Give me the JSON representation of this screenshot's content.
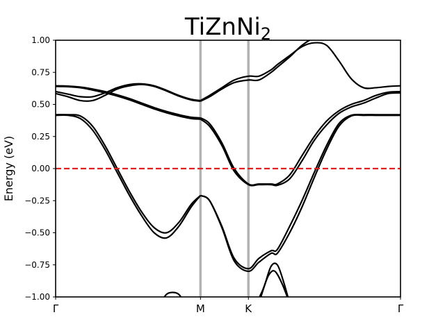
{
  "chart_data": {
    "type": "line",
    "title": "TiZnNi",
    "title_subscript": "2",
    "ylabel": "Energy (eV)",
    "xlabel": "",
    "ylim": [
      -1.0,
      1.0
    ],
    "xlim": [
      0,
      2.8
    ],
    "yticks": [
      -1.0,
      -0.75,
      -0.5,
      -0.25,
      0.0,
      0.25,
      0.5,
      0.75,
      1.0
    ],
    "ytick_labels": [
      "−1.00",
      "−0.75",
      "−0.50",
      "−0.25",
      "0.00",
      "0.25",
      "0.50",
      "0.75",
      "1.00"
    ],
    "kpoints": [
      {
        "label": "Γ",
        "x": 0.0
      },
      {
        "label": "M",
        "x": 1.176
      },
      {
        "label": "K",
        "x": 1.565
      },
      {
        "label": "Γ",
        "x": 2.8
      }
    ],
    "kpoint_line_color": "#b3b3b3",
    "fermi_level": {
      "y": 0.0,
      "color": "#e02020",
      "style": "dashed"
    },
    "band_color": "#000000",
    "grid": false,
    "series": [
      {
        "x": [
          0,
          0.1,
          0.2,
          0.3,
          0.4,
          0.5,
          0.6,
          0.7,
          0.8,
          0.9,
          1.0,
          1.1,
          1.176
        ],
        "values": [
          0.645,
          0.643,
          0.635,
          0.62,
          0.6,
          0.575,
          0.545,
          0.51,
          0.475,
          0.445,
          0.42,
          0.4,
          0.395
        ]
      },
      {
        "x": [
          0,
          0.1,
          0.2,
          0.3,
          0.4,
          0.5,
          0.6,
          0.7,
          0.8,
          0.9,
          1.0,
          1.1,
          1.176
        ],
        "values": [
          0.64,
          0.638,
          0.63,
          0.612,
          0.59,
          0.565,
          0.535,
          0.5,
          0.465,
          0.435,
          0.41,
          0.39,
          0.385
        ]
      },
      {
        "x": [
          0,
          0.1,
          0.2,
          0.3,
          0.4,
          0.5,
          0.6,
          0.7,
          0.8,
          0.9,
          1.0,
          1.1,
          1.176
        ],
        "values": [
          0.6,
          0.58,
          0.56,
          0.56,
          0.59,
          0.63,
          0.655,
          0.66,
          0.645,
          0.61,
          0.57,
          0.54,
          0.53
        ]
      },
      {
        "x": [
          0,
          0.1,
          0.2,
          0.3,
          0.4,
          0.5,
          0.6,
          0.7,
          0.8,
          0.9,
          1.0,
          1.1,
          1.176
        ],
        "values": [
          0.585,
          0.56,
          0.53,
          0.53,
          0.57,
          0.62,
          0.645,
          0.655,
          0.64,
          0.605,
          0.565,
          0.535,
          0.525
        ]
      },
      {
        "x": [
          0,
          0.1,
          0.2,
          0.3,
          0.4,
          0.5,
          0.6,
          0.7,
          0.8,
          0.9,
          1.0,
          1.1,
          1.176
        ],
        "values": [
          0.42,
          0.42,
          0.41,
          0.33,
          0.18,
          0.0,
          -0.18,
          -0.34,
          -0.46,
          -0.5,
          -0.42,
          -0.28,
          -0.21
        ]
      },
      {
        "x": [
          0,
          0.1,
          0.2,
          0.3,
          0.4,
          0.5,
          0.6,
          0.7,
          0.8,
          0.9,
          1.0,
          1.1,
          1.176
        ],
        "values": [
          0.415,
          0.415,
          0.39,
          0.3,
          0.15,
          -0.03,
          -0.21,
          -0.37,
          -0.5,
          -0.54,
          -0.45,
          -0.3,
          -0.21
        ]
      },
      {
        "x": [
          1.176,
          1.25,
          1.35,
          1.45,
          1.565,
          1.65,
          1.75,
          1.8,
          1.9,
          2.0,
          2.1,
          2.2,
          2.3,
          2.4,
          2.5,
          2.6,
          2.7,
          2.8
        ],
        "values": [
          0.53,
          0.57,
          0.63,
          0.69,
          0.72,
          0.72,
          0.77,
          0.81,
          0.88,
          0.95,
          0.98,
          0.96,
          0.84,
          0.7,
          0.63,
          0.63,
          0.64,
          0.645
        ]
      },
      {
        "x": [
          1.176,
          1.25,
          1.35,
          1.45,
          1.565,
          1.65,
          1.75,
          1.8,
          1.9,
          2.0,
          2.1,
          2.2,
          2.3,
          2.4,
          2.5,
          2.6,
          2.7,
          2.8
        ],
        "values": [
          0.525,
          0.56,
          0.62,
          0.67,
          0.69,
          0.69,
          0.75,
          0.79,
          0.87,
          0.96,
          1.02,
          1.05,
          1.05,
          1.05,
          1.05,
          1.05,
          1.05,
          1.05
        ]
      },
      {
        "x": [
          1.176,
          1.25,
          1.35,
          1.45,
          1.565,
          1.65,
          1.75,
          1.8,
          1.9,
          2.0,
          2.1,
          2.2,
          2.3,
          2.4,
          2.5,
          2.6,
          2.7,
          2.8
        ],
        "values": [
          0.395,
          0.35,
          0.2,
          0.0,
          -0.12,
          -0.12,
          -0.12,
          -0.12,
          -0.05,
          0.1,
          0.25,
          0.37,
          0.45,
          0.5,
          0.53,
          0.57,
          0.595,
          0.6
        ]
      },
      {
        "x": [
          1.176,
          1.25,
          1.35,
          1.45,
          1.565,
          1.65,
          1.75,
          1.8,
          1.9,
          2.0,
          2.1,
          2.2,
          2.3,
          2.4,
          2.5,
          2.6,
          2.7,
          2.8
        ],
        "values": [
          0.385,
          0.33,
          0.18,
          -0.02,
          -0.125,
          -0.125,
          -0.125,
          -0.13,
          -0.08,
          0.06,
          0.22,
          0.34,
          0.43,
          0.48,
          0.51,
          0.55,
          0.585,
          0.59
        ]
      },
      {
        "x": [
          1.176,
          1.25,
          1.35,
          1.45,
          1.565,
          1.65,
          1.75,
          1.8,
          1.9,
          2.0,
          2.1,
          2.2,
          2.3,
          2.4,
          2.5,
          2.6,
          2.7,
          2.8
        ],
        "values": [
          -0.21,
          -0.25,
          -0.45,
          -0.7,
          -0.78,
          -0.7,
          -0.64,
          -0.63,
          -0.45,
          -0.25,
          -0.03,
          0.18,
          0.35,
          0.415,
          0.42,
          0.42,
          0.42,
          0.42
        ]
      },
      {
        "x": [
          1.176,
          1.25,
          1.35,
          1.45,
          1.565,
          1.65,
          1.75,
          1.8,
          1.9,
          2.0,
          2.1,
          2.2,
          2.3,
          2.4,
          2.5,
          2.6,
          2.7,
          2.8
        ],
        "values": [
          -0.21,
          -0.25,
          -0.46,
          -0.72,
          -0.8,
          -0.73,
          -0.66,
          -0.66,
          -0.5,
          -0.3,
          -0.07,
          0.15,
          0.33,
          0.41,
          0.415,
          0.415,
          0.415,
          0.415
        ]
      },
      {
        "x": [
          0.85,
          0.9,
          0.95,
          1.0,
          1.05
        ],
        "values": [
          -1.05,
          -0.98,
          -0.965,
          -0.98,
          -1.05
        ]
      },
      {
        "x": [
          1.65,
          1.7,
          1.75,
          1.8,
          1.85,
          1.9
        ],
        "values": [
          -1.05,
          -0.9,
          -0.76,
          -0.75,
          -0.88,
          -1.05
        ]
      },
      {
        "x": [
          1.63,
          1.68,
          1.73,
          1.78,
          1.84,
          1.9
        ],
        "values": [
          -1.05,
          -0.95,
          -0.83,
          -0.8,
          -0.9,
          -1.05
        ]
      }
    ]
  }
}
